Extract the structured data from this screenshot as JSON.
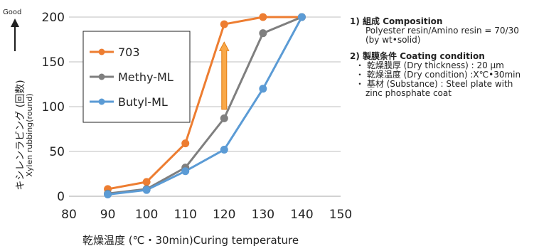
{
  "chart_data": {
    "type": "line",
    "x": [
      90,
      100,
      110,
      120,
      130,
      140
    ],
    "series": [
      {
        "name": "703",
        "color": "#ED7D31",
        "values": [
          8,
          16,
          59,
          192,
          200,
          200
        ]
      },
      {
        "name": "Methy-ML",
        "color": "#7F7F7F",
        "values": [
          3,
          8,
          32,
          87,
          182,
          200
        ]
      },
      {
        "name": "Butyl-ML",
        "color": "#5B9BD5",
        "values": [
          2,
          7,
          28,
          52,
          120,
          200
        ]
      }
    ],
    "xlim": [
      80,
      150
    ],
    "xticks": [
      "80",
      "90",
      "100",
      "110",
      "120",
      "130",
      "140",
      "150"
    ],
    "ylim": [
      0,
      200
    ],
    "yticks": [
      "0",
      "50",
      "100",
      "150",
      "200"
    ],
    "xlabel": "乾燥温度 (℃・30min)Curing temperature",
    "ylabel": "キシレンラビング (回数)",
    "ylabel2": "Xylen rubbing(round)",
    "good_label": "Good",
    "grid": "horizontal",
    "legend": "top-left",
    "arrow": {
      "x": 120,
      "y_from": 97,
      "y_to": 172,
      "color": "#F9A848"
    }
  },
  "notes": {
    "composition_title": "1)  組成   Composition",
    "composition_line1": "Polyester resin/Amino resin = 70/30",
    "composition_line2": "(by wt•solid)",
    "condition_title": "2)  製膜条件    Coating condition",
    "condition_item1": "・ 乾燥膜厚 (Dry thickness) : 20 μm",
    "condition_item2": "・ 乾燥温度 (Dry condition) :X℃•30min",
    "condition_item3": "・ 基材 (Substance) :  Steel plate with",
    "condition_item3b": "zinc phosphate coat"
  }
}
